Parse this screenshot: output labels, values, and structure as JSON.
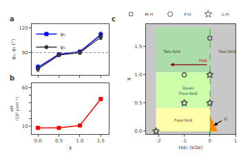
{
  "chart_data": [
    {
      "type": "line",
      "panel_label": "a",
      "x": [
        0.0,
        0.5,
        1.0,
        1.5
      ],
      "series": [
        {
          "name": "φ₀",
          "color": "blue",
          "marker": "square",
          "values": [
            72,
            88,
            91,
            112
          ],
          "errors": [
            3,
            2,
            2,
            3
          ]
        },
        {
          "name": "φ₂",
          "color": "#333333",
          "marker": "circle",
          "values": [
            70,
            87,
            90,
            109
          ],
          "errors": [
            3,
            2,
            2,
            3
          ]
        }
      ],
      "hline": {
        "y": 90,
        "color": "gray",
        "line_style": "dotted"
      },
      "ylabel": "φ₀, φ₂ (°)",
      "xlim": [
        -0.15,
        1.7
      ],
      "xticks": [
        0.0,
        0.5,
        1.0,
        1.5
      ],
      "ylim": [
        63,
        125
      ],
      "yticks": [
        90,
        120
      ],
      "tick_labels": "y",
      "grid": false,
      "legend": "upper left"
    },
    {
      "type": "line",
      "panel_label": "b",
      "x": [
        0.0,
        0.5,
        1.0,
        1.5
      ],
      "values": [
        8,
        8,
        11,
        45
      ],
      "color": "red",
      "marker": "square",
      "xlabel": "x",
      "ylabel": "αH\n(10³ psm⁻¹)",
      "xlim": [
        -0.15,
        1.7
      ],
      "xticks": [
        {
          "value": 0.0,
          "label": "0.0"
        },
        0.5,
        {
          "value": 1.0,
          "label": "1.0"
        },
        1.5
      ],
      "ylim": [
        0,
        65
      ],
      "yticks": [
        10,
        {
          "value": 20,
          "label": null
        },
        {
          "value": 30,
          "label": null
        },
        {
          "value": 40,
          "label": null
        },
        {
          "value": 50,
          "label": null
        },
        60
      ],
      "grid": false
    },
    {
      "type": "scatter",
      "panel_label": "c",
      "background_color": "#c8c8c8",
      "regions": [
        {
          "x": [
            -2.1,
            0.0
          ],
          "y": [
            0.0,
            0.42
          ],
          "color": "#ffffaa"
        },
        {
          "x": [
            -2.1,
            0.0
          ],
          "y": [
            0.42,
            1.05
          ],
          "color": "#ccffaa"
        },
        {
          "x": [
            -2.1,
            0.0
          ],
          "y": [
            1.05,
            1.85
          ],
          "color": "#aaddaa"
        }
      ],
      "polygons": [
        {
          "points": [
            [
              0.0,
              0.0
            ],
            [
              0.3,
              0.0
            ],
            [
              0.0,
              0.28
            ]
          ],
          "color": "#ff8800"
        }
      ],
      "vline": {
        "x": 0.0,
        "color": "#00aa00",
        "line_style": "dashed"
      },
      "arrows": [
        {
          "from": [
            -0.08,
            1.18
          ],
          "to": [
            -1.55,
            1.18
          ],
          "color": "#8b0000"
        },
        {
          "from": [
            0.5,
            0.2
          ],
          "to": [
            0.15,
            0.1
          ],
          "color": "black"
        }
      ],
      "annotations": [
        {
          "text": "Hab",
          "x": -0.05,
          "y": 1.26,
          "color": "#cc0000",
          "align": "right"
        },
        {
          "text": "Four-fold",
          "x": -1.05,
          "y": 0.2
        },
        {
          "text": "Quasi\nFour-fold",
          "x": -0.85,
          "y": 0.73
        },
        {
          "text": "Two-fold",
          "x": -1.5,
          "y": 1.42
        },
        {
          "text": "Two-fold",
          "x": 0.65,
          "y": 1.42
        },
        {
          "text": "IC",
          "x": 0.62,
          "y": 0.22
        }
      ],
      "series": [
        {
          "name": "M-H",
          "marker": "open_square",
          "color": "#555555",
          "x": [
            -2.1,
            -1.0,
            -1.0,
            0.0,
            0.0,
            0.0
          ],
          "values": [
            0.0,
            0.5,
            1.0,
            0.5,
            1.0,
            1.65
          ]
        },
        {
          "name": "P-H",
          "marker": "open_circle",
          "color": "#555555",
          "x": [
            -2.1,
            -1.0,
            -1.0,
            0.0,
            0.0,
            0.0
          ],
          "values": [
            0.0,
            0.5,
            1.0,
            0.5,
            1.0,
            1.65
          ]
        },
        {
          "name": "ε-H",
          "marker": "open_star",
          "color": "#555555",
          "x": [
            -2.1,
            -1.0,
            0.0,
            0.0
          ],
          "values": [
            0.0,
            0.5,
            0.5,
            1.0
          ]
        }
      ],
      "xlabel": "Hdc (kOe)",
      "ylabel": "x",
      "xlim": [
        -2.5,
        1.0
      ],
      "xticks": [
        -2,
        -1,
        0,
        1
      ],
      "ylim": [
        -0.05,
        1.9
      ],
      "yticks": [
        {
          "value": 0.0,
          "label": "0.0"
        },
        0.5,
        {
          "value": 1.0,
          "label": "1.0"
        },
        1.5
      ],
      "grid": false,
      "legend": "upper left"
    }
  ]
}
